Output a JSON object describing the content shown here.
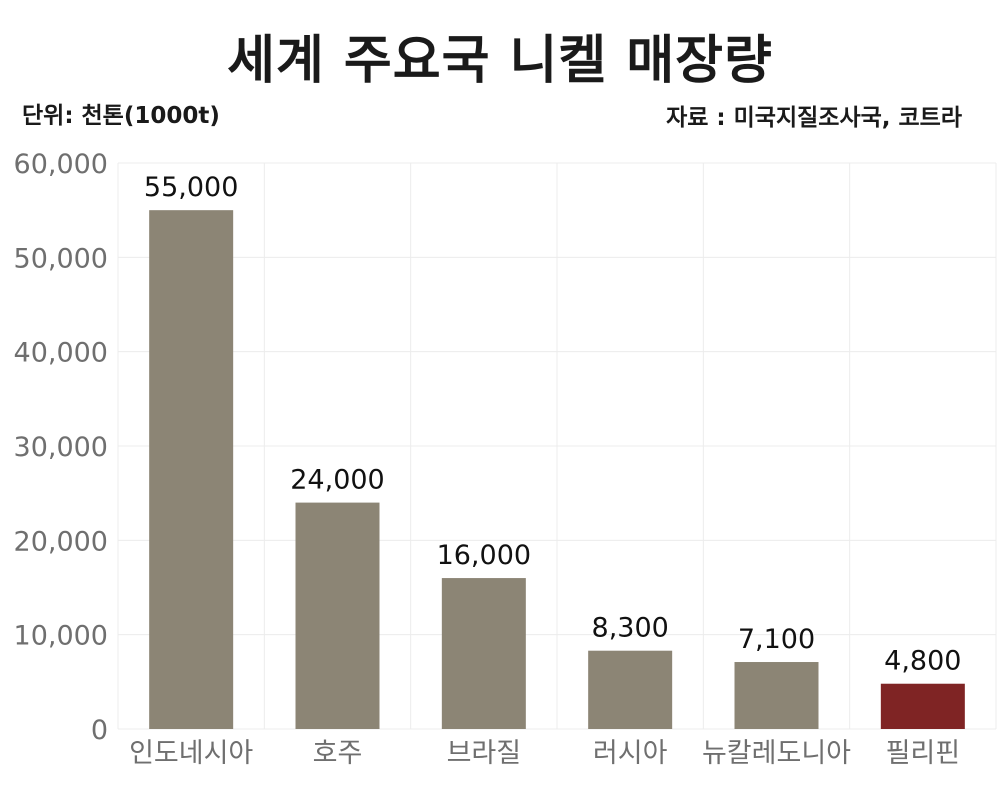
{
  "header": {
    "title": "세계 주요국 니켈 매장량",
    "unit": "단위: 천톤(1000t)",
    "source": "자료 : 미국지질조사국, 코트라"
  },
  "chart_data": {
    "type": "bar",
    "title": "세계 주요국 니켈 매장량",
    "xlabel": "",
    "ylabel": "",
    "categories": [
      "인도네시아",
      "호주",
      "브라질",
      "러시아",
      "뉴칼레도니아",
      "필리핀"
    ],
    "values": [
      55000,
      24000,
      16000,
      8300,
      7100,
      4800
    ],
    "value_labels": [
      "55,000",
      "24,000",
      "16,000",
      "8,300",
      "7,100",
      "4,800"
    ],
    "ylim": [
      0,
      60000
    ],
    "yticks": [
      0,
      10000,
      20000,
      30000,
      40000,
      50000,
      60000
    ],
    "ytick_labels": [
      "0",
      "10,000",
      "20,000",
      "30,000",
      "40,000",
      "50,000",
      "60,000"
    ],
    "grid": true,
    "bar_color": "#8c8575",
    "highlight_color": "#7f2424",
    "highlight_index": 5
  }
}
